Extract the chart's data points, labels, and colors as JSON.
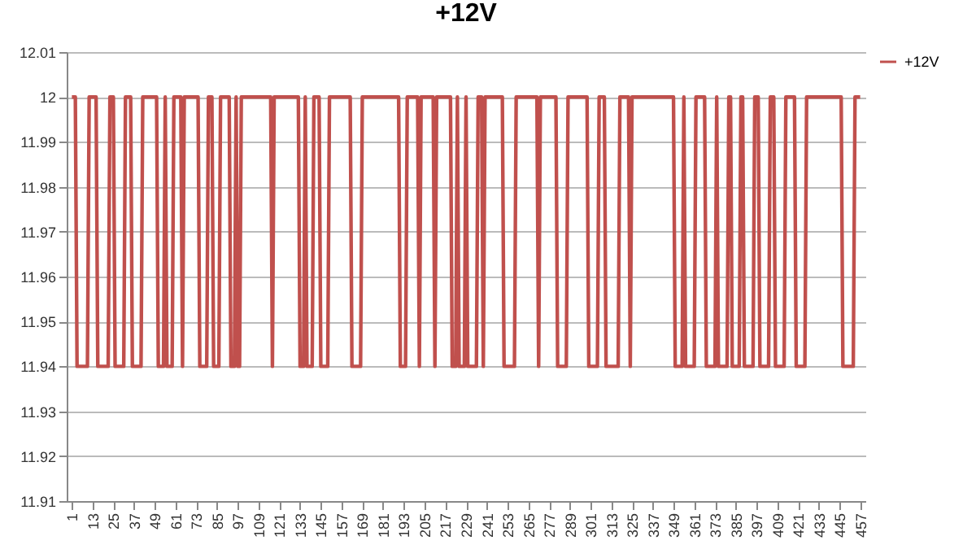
{
  "chart_data": {
    "type": "line",
    "title": "+12V",
    "x": [
      1,
      3,
      4,
      10,
      11,
      15,
      16,
      22,
      23,
      25,
      26,
      31,
      32,
      35,
      36,
      41,
      42,
      50,
      51,
      54,
      55,
      56,
      59,
      60,
      64,
      65,
      66,
      74,
      75,
      79,
      80,
      82,
      83,
      86,
      87,
      92,
      93,
      95,
      96,
      97,
      98,
      99,
      116,
      117,
      118,
      132,
      133,
      135,
      136,
      137,
      140,
      141,
      144,
      145,
      149,
      150,
      162,
      163,
      168,
      169,
      190,
      191,
      194,
      195,
      201,
      202,
      203,
      210,
      211,
      212,
      220,
      221,
      223,
      224,
      225,
      228,
      229,
      230,
      235,
      236,
      238,
      239,
      240,
      250,
      251,
      257,
      258,
      270,
      271,
      272,
      281,
      282,
      287,
      288,
      299,
      300,
      305,
      306,
      309,
      310,
      317,
      318,
      323,
      324,
      325,
      349,
      350,
      354,
      355,
      356,
      361,
      362,
      367,
      368,
      373,
      374,
      375,
      380,
      381,
      382,
      383,
      387,
      388,
      389,
      390,
      395,
      396,
      398,
      399,
      404,
      405,
      407,
      408,
      413,
      414,
      419,
      420,
      425,
      426,
      446,
      447,
      453,
      454,
      457
    ],
    "series": [
      {
        "name": "+12V",
        "color": "#c0504d",
        "values": [
          12,
          12,
          11.94,
          11.94,
          12,
          12,
          11.94,
          11.94,
          12,
          12,
          11.94,
          11.94,
          12,
          12,
          11.94,
          11.94,
          12,
          12,
          11.94,
          11.94,
          12,
          11.94,
          11.94,
          12,
          12,
          11.94,
          12,
          12,
          11.94,
          11.94,
          12,
          12,
          11.94,
          11.94,
          12,
          12,
          11.94,
          11.94,
          12,
          11.94,
          11.94,
          12,
          12,
          11.94,
          12,
          12,
          11.94,
          11.94,
          12,
          11.94,
          11.94,
          12,
          12,
          11.94,
          11.94,
          12,
          12,
          11.94,
          11.94,
          12,
          12,
          11.94,
          11.94,
          12,
          12,
          11.94,
          12,
          12,
          11.94,
          12,
          12,
          11.94,
          11.94,
          12,
          11.94,
          11.94,
          12,
          11.94,
          11.94,
          12,
          12,
          11.94,
          12,
          12,
          11.94,
          11.94,
          12,
          12,
          11.94,
          12,
          12,
          11.94,
          11.94,
          12,
          12,
          11.94,
          11.94,
          12,
          12,
          11.94,
          11.94,
          12,
          12,
          11.94,
          12,
          12,
          11.94,
          11.94,
          12,
          11.94,
          11.94,
          12,
          12,
          11.94,
          11.94,
          12,
          11.94,
          11.94,
          12,
          12,
          11.94,
          11.94,
          12,
          12,
          11.94,
          11.94,
          12,
          12,
          11.94,
          11.94,
          12,
          12,
          11.94,
          11.94,
          12,
          12,
          11.94,
          11.94,
          12,
          12,
          11.94,
          11.94,
          12,
          12
        ]
      }
    ],
    "xlim": [
      -2,
      460
    ],
    "xticks": [
      1,
      13,
      25,
      37,
      49,
      61,
      73,
      85,
      97,
      109,
      121,
      133,
      145,
      157,
      169,
      181,
      193,
      205,
      217,
      229,
      241,
      253,
      265,
      277,
      289,
      301,
      313,
      325,
      337,
      349,
      361,
      373,
      385,
      397,
      409,
      421,
      433,
      445,
      457
    ],
    "ylim": [
      11.91,
      12.01
    ],
    "yticks": [
      11.91,
      11.92,
      11.93,
      11.94,
      11.95,
      11.96,
      11.97,
      11.98,
      11.99,
      12,
      12.01
    ],
    "grid": "y",
    "legend": "right",
    "marker": "none",
    "line_style": "solid"
  }
}
